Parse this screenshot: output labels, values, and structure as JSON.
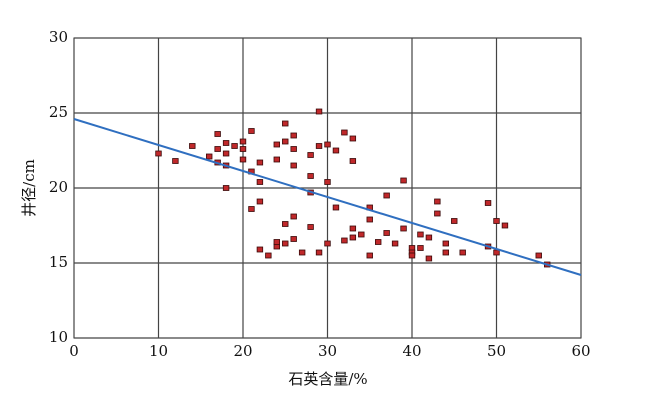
{
  "chart_data": {
    "type": "scatter",
    "xlabel": "石英含量/%",
    "ylabel": "井径/cm",
    "xlim": [
      0,
      60
    ],
    "ylim": [
      10,
      30
    ],
    "xticks": [
      0,
      10,
      20,
      30,
      40,
      50,
      60
    ],
    "yticks": [
      10,
      15,
      20,
      25,
      30
    ],
    "grid": true,
    "points": {
      "color": "#c0282a",
      "x": [
        10,
        12,
        14,
        16,
        17,
        17,
        17,
        18,
        18,
        18,
        18,
        19,
        20,
        20,
        20,
        21,
        21,
        21,
        22,
        22,
        22,
        22,
        23,
        24,
        24,
        24,
        24,
        25,
        25,
        25,
        25,
        26,
        26,
        26,
        26,
        26,
        27,
        28,
        28,
        28,
        28,
        29,
        29,
        29,
        30,
        30,
        30,
        31,
        31,
        32,
        32,
        33,
        33,
        33,
        33,
        34,
        35,
        35,
        35,
        36,
        37,
        37,
        38,
        39,
        39,
        40,
        40,
        40,
        41,
        41,
        42,
        42,
        43,
        43,
        44,
        44,
        45,
        46,
        49,
        49,
        50,
        50,
        51,
        55,
        56
      ],
      "values": [
        22.3,
        21.8,
        22.8,
        22.1,
        23.6,
        22.6,
        21.7,
        23.0,
        22.3,
        21.5,
        20.0,
        22.8,
        23.1,
        22.6,
        21.9,
        23.8,
        21.1,
        18.6,
        21.7,
        20.4,
        19.1,
        15.9,
        15.5,
        22.9,
        21.9,
        16.1,
        16.4,
        24.3,
        23.1,
        17.6,
        16.3,
        23.5,
        22.6,
        21.5,
        18.1,
        16.6,
        15.7,
        22.2,
        20.8,
        19.7,
        17.4,
        25.1,
        22.8,
        15.7,
        22.9,
        20.4,
        16.3,
        22.5,
        18.7,
        23.7,
        16.5,
        23.3,
        21.8,
        17.3,
        16.7,
        16.9,
        18.7,
        17.9,
        15.5,
        16.4,
        19.5,
        17.0,
        16.3,
        20.5,
        17.3,
        16.0,
        15.7,
        15.5,
        16.9,
        16.0,
        16.7,
        15.3,
        19.1,
        18.3,
        16.3,
        15.7,
        17.8,
        15.7,
        19.0,
        16.1,
        17.8,
        15.7,
        17.5,
        15.5,
        14.9
      ]
    },
    "fit": {
      "color": "#2f6fc0",
      "x": [
        0,
        60
      ],
      "values": [
        24.6,
        14.2
      ]
    }
  }
}
